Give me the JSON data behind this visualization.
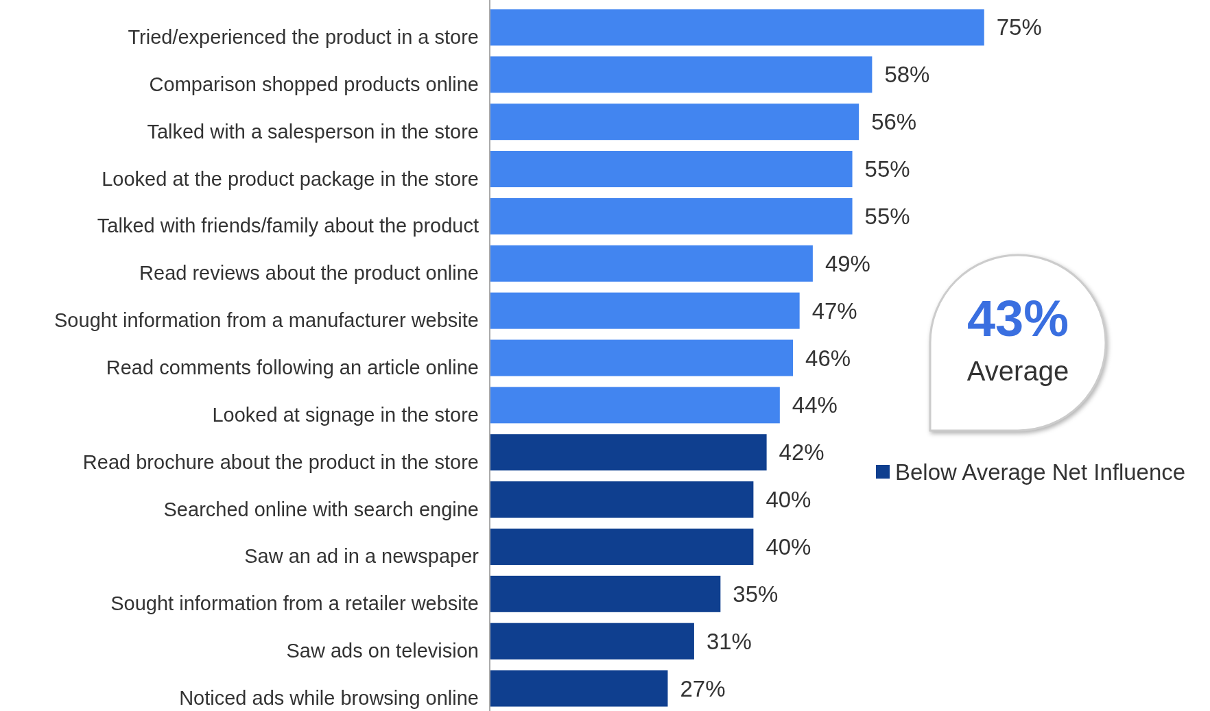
{
  "chart_data": {
    "type": "bar",
    "orientation": "horizontal",
    "categories": [
      "Tried/experienced the product in a store",
      "Comparison shopped products online",
      "Talked with a salesperson in the store",
      "Looked at the product package in the store",
      "Talked with friends/family about the product",
      "Read reviews about the product online",
      "Sought information from a manufacturer website",
      "Read comments following an article online",
      "Looked at signage in the store",
      "Read brochure about the product in the store",
      "Searched online with search engine",
      "Saw an ad in a newspaper",
      "Sought information from a retailer website",
      "Saw ads on television",
      "Noticed ads while browsing online"
    ],
    "series": [
      {
        "color": "#4285f0",
        "values": [
          75,
          58,
          56,
          55,
          55,
          49,
          47,
          46,
          44,
          null,
          null,
          null,
          null,
          null,
          null
        ],
        "value_labels": [
          "75%",
          "58%",
          "56%",
          "55%",
          "55%",
          "49%",
          "47%",
          "46%",
          "44%",
          null,
          null,
          null,
          null,
          null,
          null
        ]
      },
      {
        "name": "Below Average Net Influence",
        "color": "#0f3f8f",
        "values": [
          null,
          null,
          null,
          null,
          null,
          null,
          null,
          null,
          null,
          42,
          40,
          40,
          35,
          31,
          27
        ],
        "value_labels": [
          null,
          null,
          null,
          null,
          null,
          null,
          null,
          null,
          null,
          "42%",
          "40%",
          "40%",
          "35%",
          "31%",
          "27%"
        ]
      }
    ],
    "legend": "right",
    "annotations": [
      "43%",
      "Average"
    ]
  }
}
